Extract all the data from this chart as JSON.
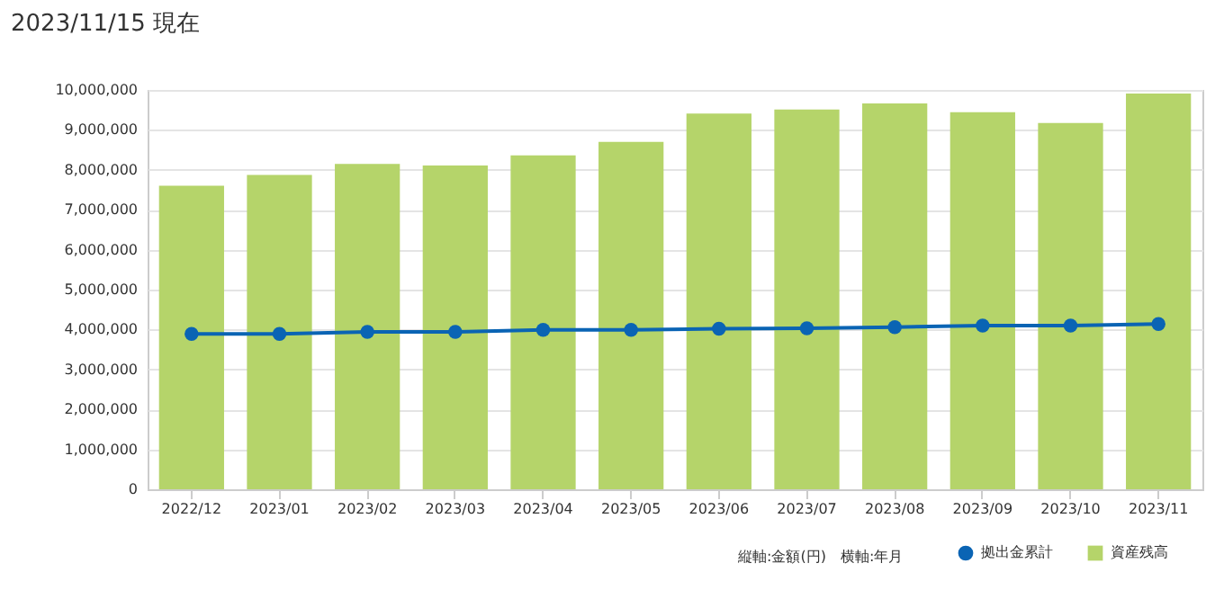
{
  "chart_data": {
    "type": "bar",
    "title": "2023/11/15 現在",
    "categories": [
      "2022/12",
      "2023/01",
      "2023/02",
      "2023/03",
      "2023/04",
      "2023/05",
      "2023/06",
      "2023/07",
      "2023/08",
      "2023/09",
      "2023/10",
      "2023/11"
    ],
    "series": [
      {
        "name": "拠出金累計",
        "type": "line",
        "color": "#0a64b4",
        "marker": "circle",
        "values": [
          3890000,
          3890000,
          3940000,
          3940000,
          3990000,
          3990000,
          4020000,
          4030000,
          4060000,
          4100000,
          4100000,
          4140000
        ]
      },
      {
        "name": "資産残高",
        "type": "bar",
        "color": "#b5d46a",
        "values": [
          7600000,
          7870000,
          8150000,
          8110000,
          8360000,
          8700000,
          9410000,
          9510000,
          9660000,
          9440000,
          9170000,
          9910000
        ]
      }
    ],
    "ylim": [
      0,
      10000000
    ],
    "yticks": [
      {
        "value": 0,
        "label": "0"
      },
      {
        "value": 1000000,
        "label": "1,000,000"
      },
      {
        "value": 2000000,
        "label": "2,000,000"
      },
      {
        "value": 3000000,
        "label": "3,000,000"
      },
      {
        "value": 4000000,
        "label": "4,000,000"
      },
      {
        "value": 5000000,
        "label": "5,000,000"
      },
      {
        "value": 6000000,
        "label": "6,000,000"
      },
      {
        "value": 7000000,
        "label": "7,000,000"
      },
      {
        "value": 8000000,
        "label": "8,000,000"
      },
      {
        "value": 9000000,
        "label": "9,000,000"
      },
      {
        "value": 10000000,
        "label": "10,000,000"
      }
    ],
    "grid": "y",
    "legend": "bottom right",
    "annotations": [
      "縦軸:金額(円)　横軸:年月"
    ]
  }
}
